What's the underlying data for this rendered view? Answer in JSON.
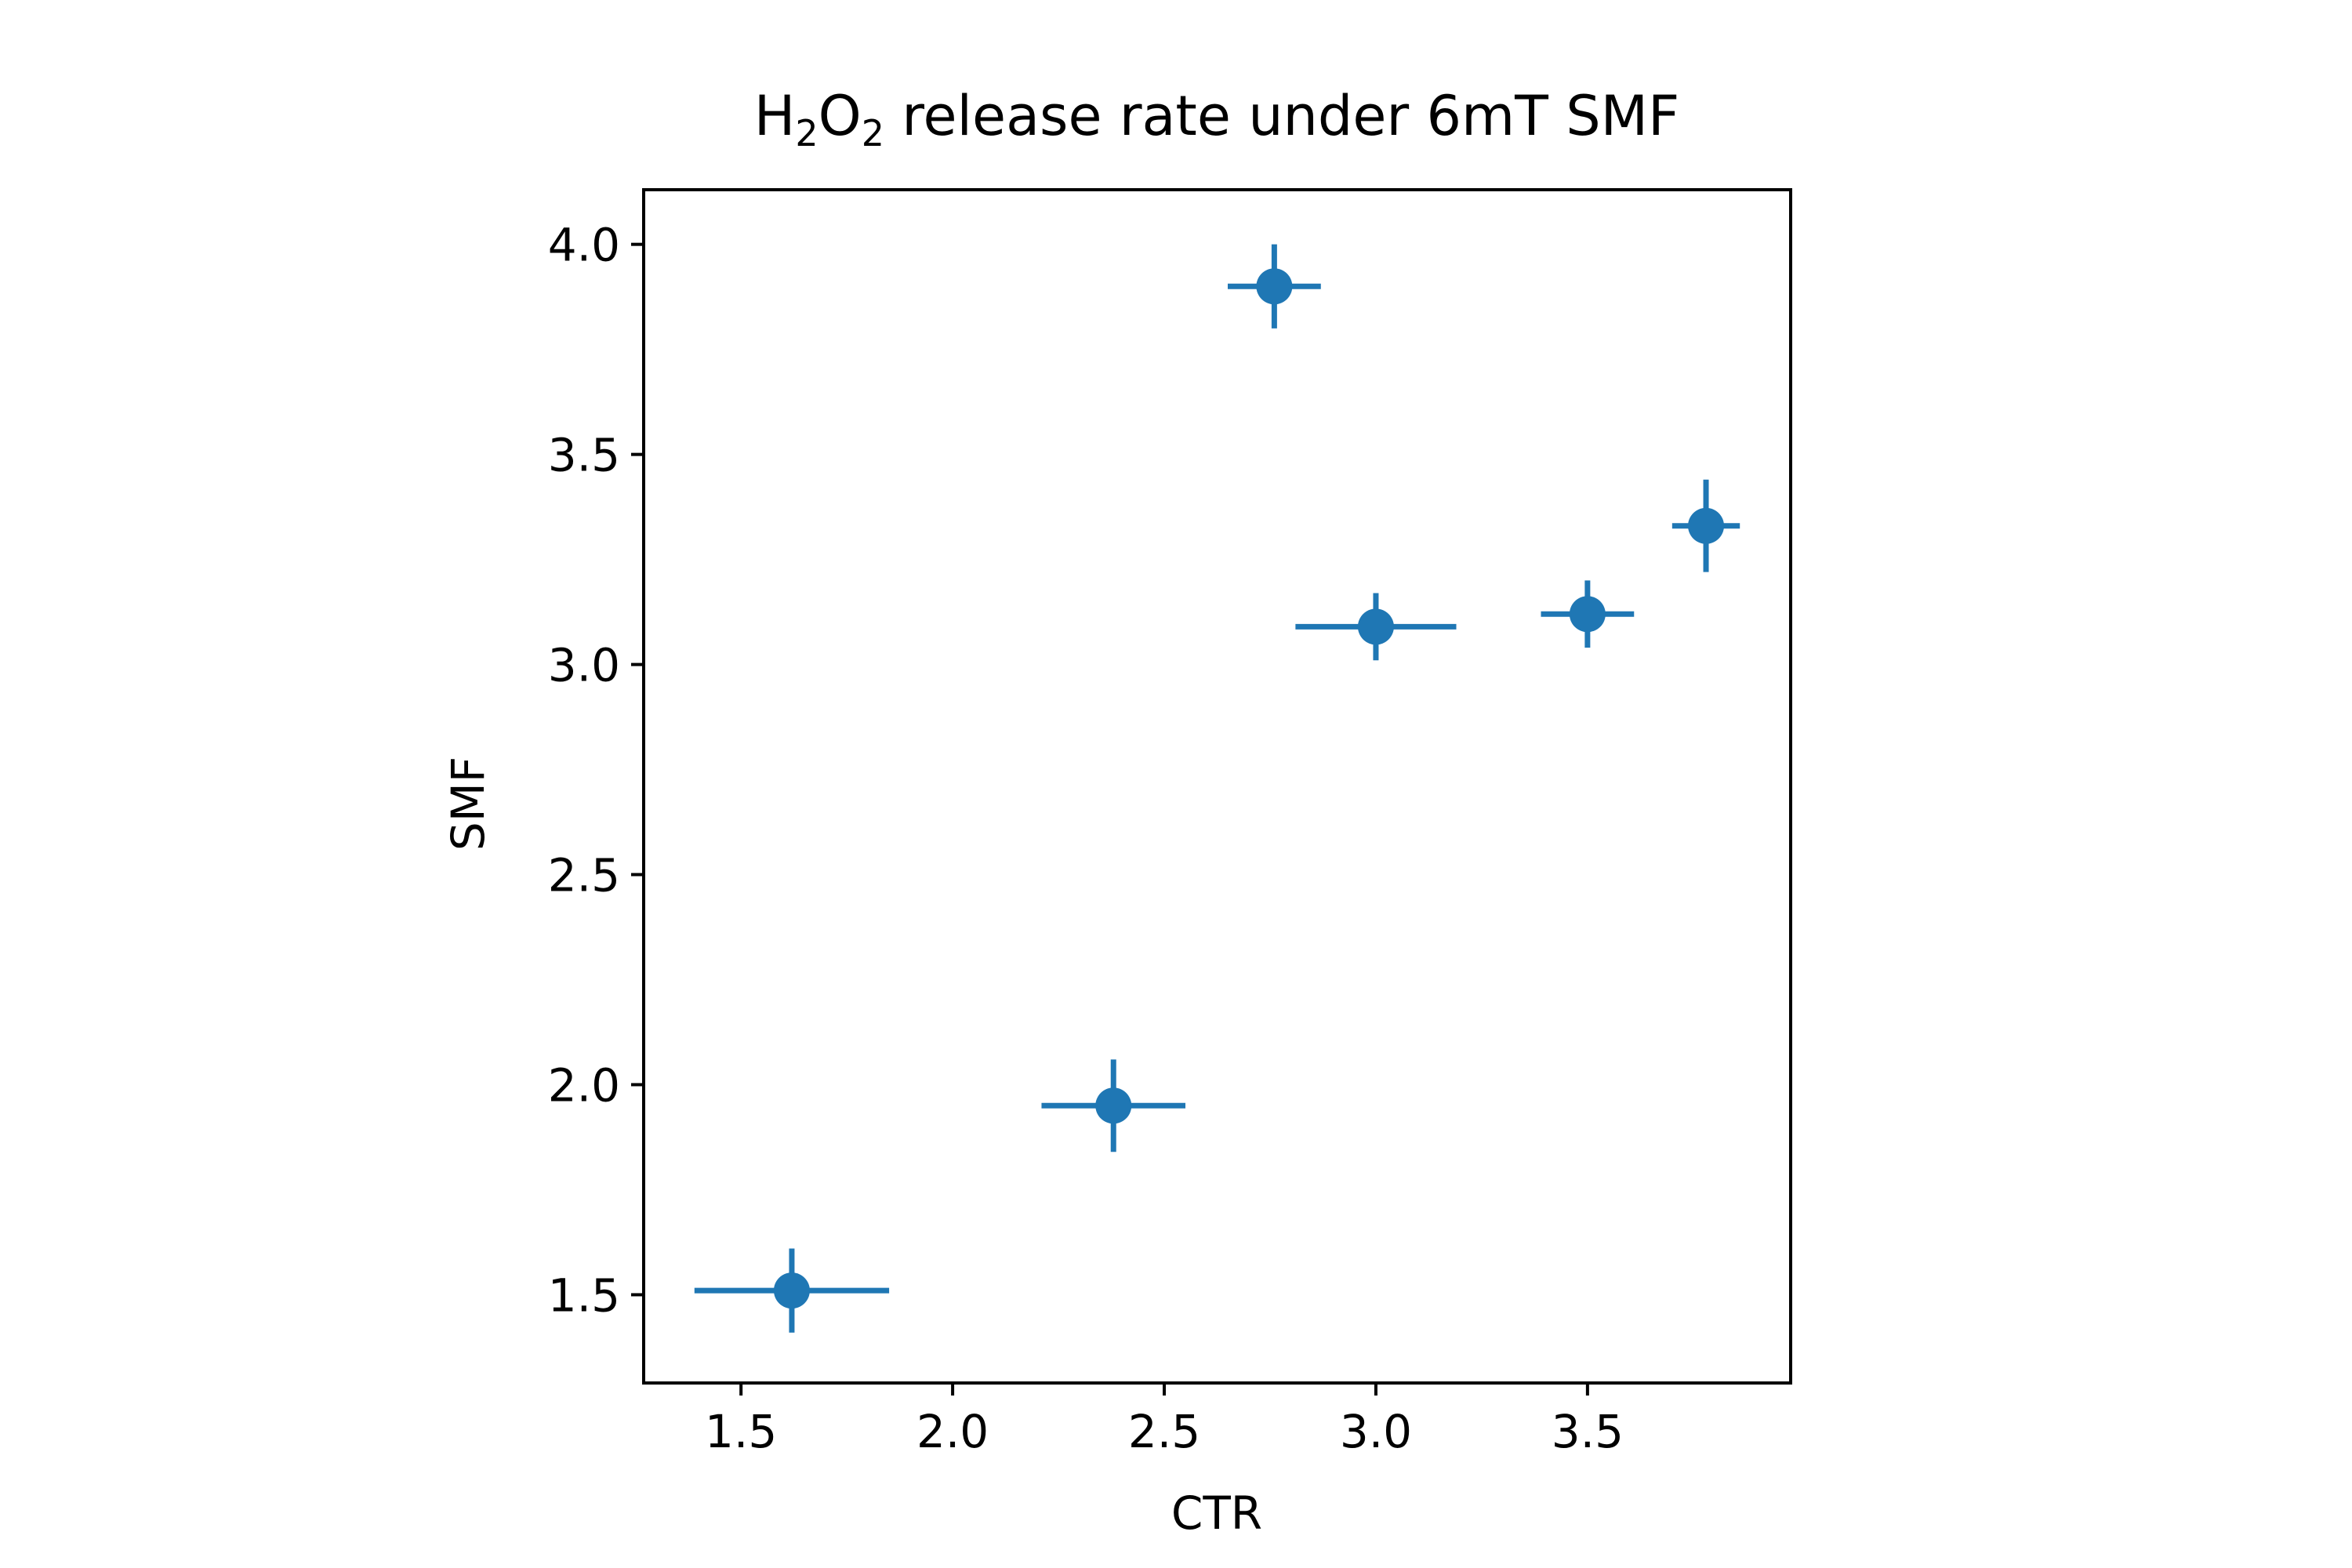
{
  "chart_data": {
    "type": "scatter",
    "title": {
      "prefix": "H",
      "sub1": "2",
      "mid": "O",
      "sub2": "2",
      "suffix": " release rate under 6mT SMF"
    },
    "xlabel": "CTR",
    "ylabel": "SMF",
    "xlim": [
      1.27,
      3.98
    ],
    "ylim": [
      1.29,
      4.13
    ],
    "xticks": [
      1.5,
      2.0,
      2.5,
      3.0,
      3.5
    ],
    "xtick_labels": [
      "1.5",
      "2.0",
      "2.5",
      "3.0",
      "3.5"
    ],
    "yticks": [
      1.5,
      2.0,
      2.5,
      3.0,
      3.5,
      4.0
    ],
    "ytick_labels": [
      "1.5",
      "2.0",
      "2.5",
      "3.0",
      "3.5",
      "4.0"
    ],
    "grid": false,
    "legend": "none",
    "color": "#1f77b4",
    "points": [
      {
        "x": 1.62,
        "y": 1.51,
        "xerr": 0.23,
        "yerr": 0.1
      },
      {
        "x": 2.38,
        "y": 1.95,
        "xerr": 0.17,
        "yerr": 0.11
      },
      {
        "x": 2.76,
        "y": 3.9,
        "xerr": 0.11,
        "yerr": 0.1
      },
      {
        "x": 3.0,
        "y": 3.09,
        "xerr": 0.19,
        "yerr": 0.08
      },
      {
        "x": 3.5,
        "y": 3.12,
        "xerr": 0.11,
        "yerr": 0.08
      },
      {
        "x": 3.78,
        "y": 3.33,
        "xerr": 0.08,
        "yerr": 0.11
      }
    ]
  }
}
